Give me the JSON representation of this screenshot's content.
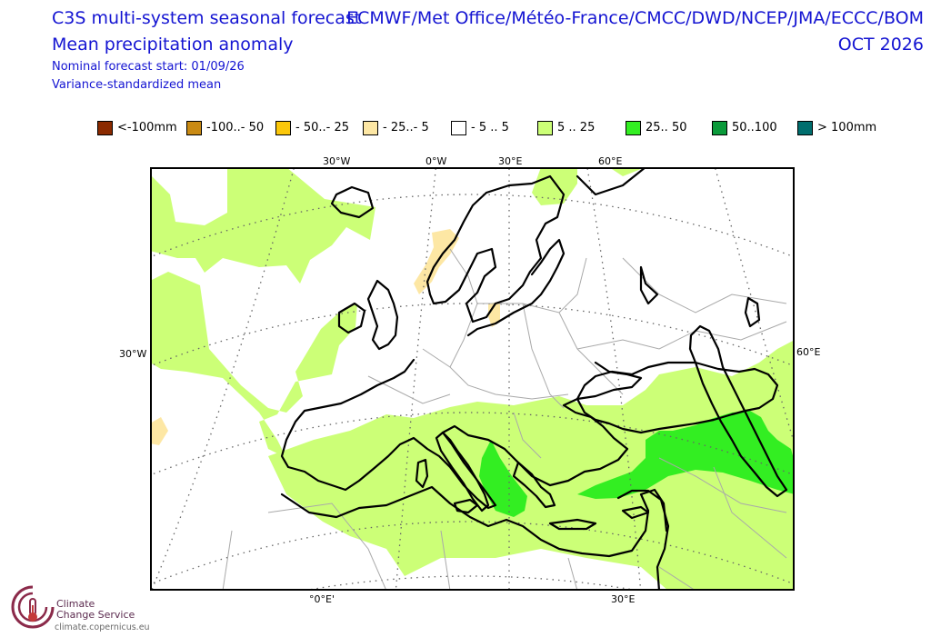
{
  "header": {
    "title_line1": "C3S multi-system seasonal forecast",
    "title_line2": "Mean precipitation anomaly",
    "subtitle1": "Nominal forecast start: 01/09/26",
    "subtitle2": "Variance-standardized mean",
    "systems": "ECMWF/Met Office/Météo-France/CMCC/DWD/NCEP/JMA/ECCC/BOM",
    "period": "OCT 2026"
  },
  "legend": [
    {
      "label": "<-100mm",
      "color": "#8b2a00"
    },
    {
      "label": "-100..- 50",
      "color": "#c98a13"
    },
    {
      "label": "- 50..- 25",
      "color": "#fbc70a"
    },
    {
      "label": "- 25..- 5",
      "color": "#fde7a4"
    },
    {
      "label": "- 5 .. 5",
      "color": "#ffffff"
    },
    {
      "label": "5 .. 25",
      "color": "#ccff77"
    },
    {
      "label": "25.. 50",
      "color": "#33ee22"
    },
    {
      "label": "50..100",
      "color": "#0a9a3a"
    },
    {
      "label": "> 100mm",
      "color": "#006e6e"
    }
  ],
  "map": {
    "coord_labels": {
      "top": [
        "30°W",
        "0°W",
        "30°E",
        "60°E"
      ],
      "left": [
        "30°W"
      ],
      "right": [
        "60°E"
      ],
      "bottom": [
        "°0°E'",
        "30°E"
      ]
    }
  },
  "branding": {
    "line1": "Climate",
    "line2": "Change Service",
    "url": "climate.copernicus.eu"
  }
}
